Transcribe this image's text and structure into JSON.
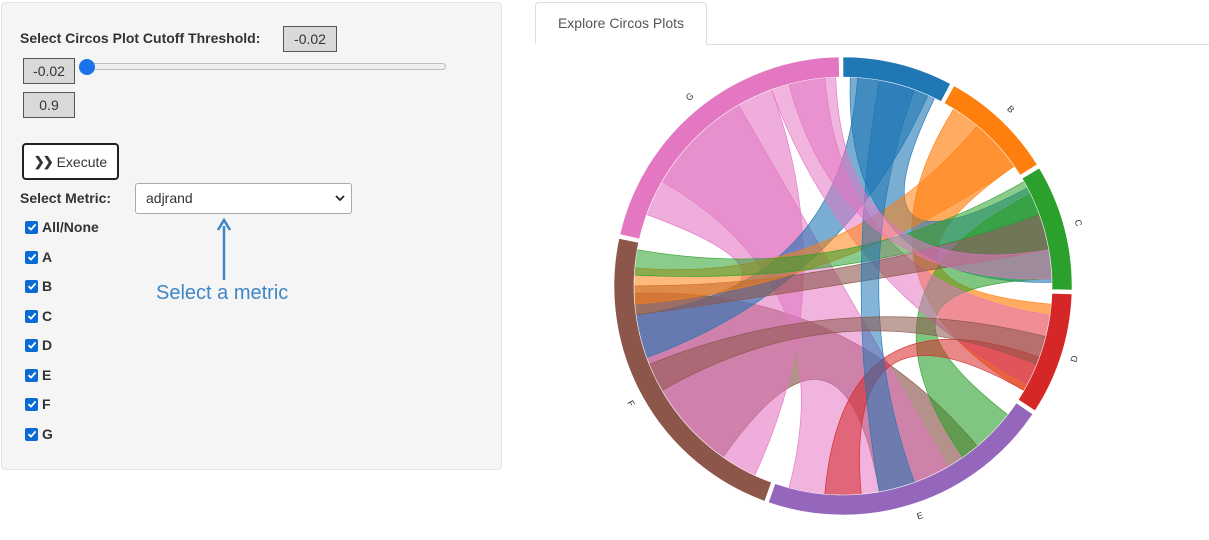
{
  "panel": {
    "threshold_label": "Select Circos Plot Cutoff Threshold:",
    "threshold_value": "-0.02",
    "slider_min_value": "-0.02",
    "slider_max_value": "0.9",
    "execute_label": "Execute",
    "metric_label": "Select Metric:",
    "metric_selected": "adjrand",
    "checkboxes": [
      {
        "label": "All/None",
        "checked": true
      },
      {
        "label": "A",
        "checked": true
      },
      {
        "label": "B",
        "checked": true
      },
      {
        "label": "C",
        "checked": true
      },
      {
        "label": "D",
        "checked": true
      },
      {
        "label": "E",
        "checked": true
      },
      {
        "label": "F",
        "checked": true
      },
      {
        "label": "G",
        "checked": true
      }
    ]
  },
  "annotation": {
    "text": "Select a metric",
    "color": "#3f86c6"
  },
  "tabs": [
    {
      "label": "Explore Circos Plots",
      "active": true
    }
  ],
  "circos": {
    "segments": [
      {
        "label": "A",
        "color": "#1f77b4",
        "show_label": false
      },
      {
        "label": "B",
        "color": "#ff7f0e",
        "show_label": true
      },
      {
        "label": "C",
        "color": "#2ca02c",
        "show_label": true
      },
      {
        "label": "D",
        "color": "#d62728",
        "show_label": true
      },
      {
        "label": "E",
        "color": "#9467bd",
        "show_label": true
      },
      {
        "label": "F",
        "color": "#8c564b",
        "show_label": true
      },
      {
        "label": "G",
        "color": "#e377c2",
        "show_label": true
      }
    ]
  }
}
